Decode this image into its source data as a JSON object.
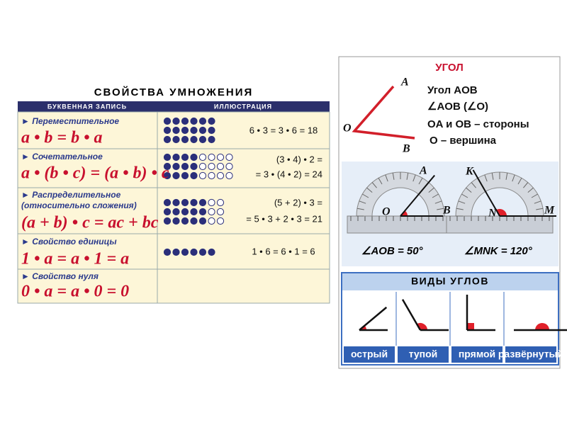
{
  "left_poster": {
    "title": "СВОЙСТВА УМНОЖЕНИЯ",
    "headers": [
      "БУКВЕННАЯ ЗАПИСЬ",
      "ИЛЛЮСТРАЦИЯ"
    ],
    "rows": [
      {
        "name": "Переместительное",
        "formula": "a • b = b • a",
        "example": [
          "6 • 3 = 3 • 6 = 18"
        ]
      },
      {
        "name": "Сочетательное",
        "formula": "a • (b • c) = (a • b) • c",
        "example": [
          "(3 • 4) • 2 =",
          "= 3 • (4 • 2) = 24"
        ]
      },
      {
        "name": "Распределительное",
        "subname": "(относительно сложения)",
        "formula": "(a + b) • c = ac + bc",
        "example": [
          "(5 + 2) • 3 =",
          "= 5 • 3 + 2 • 3 = 21"
        ]
      },
      {
        "name": "Свойство единицы",
        "formula": "1 • a = a • 1 = a",
        "example": [
          "1 • 6 = 6 • 1 = 6"
        ]
      },
      {
        "name": "Свойство нуля",
        "formula": "0 • a = a • 0 = 0"
      }
    ]
  },
  "right_poster": {
    "title": "УГОЛ",
    "points": [
      "A",
      "O",
      "B"
    ],
    "definitions": [
      "Угол AOB",
      "∠AOB (∠O)",
      "OA и OB – стороны",
      "O – вершина"
    ],
    "protractors": [
      {
        "labels": [
          "A",
          "O",
          "B"
        ],
        "measure": "∠AOB = 50°"
      },
      {
        "labels": [
          "K",
          "N",
          "M"
        ],
        "measure": "∠MNK = 120°"
      }
    ],
    "types_title": "ВИДЫ УГЛОВ",
    "types": [
      "острый",
      "тупой",
      "прямой",
      "развёрнутый"
    ]
  }
}
